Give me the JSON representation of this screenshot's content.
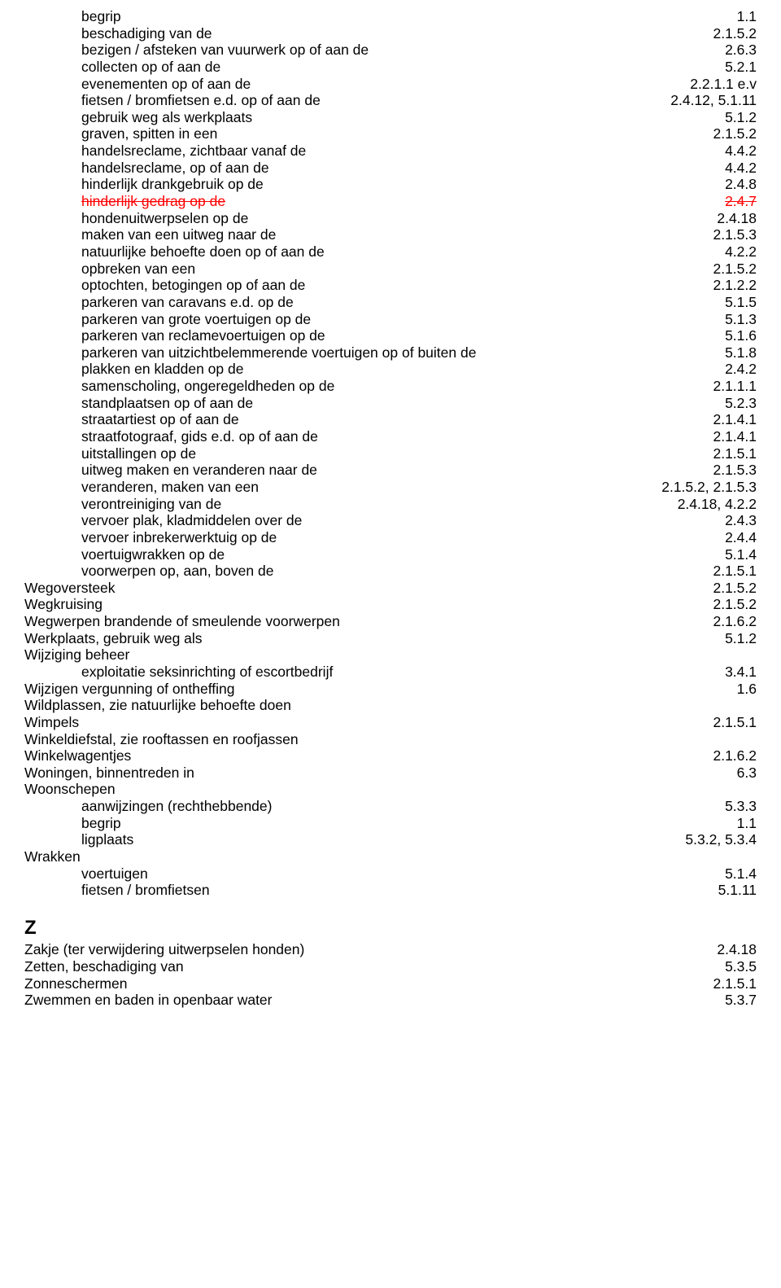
{
  "main_entries": [
    {
      "term": "begrip",
      "ref": "1.1",
      "indent": 1,
      "struck": false
    },
    {
      "term": "beschadiging van de",
      "ref": "2.1.5.2",
      "indent": 1,
      "struck": false
    },
    {
      "term": "bezigen / afsteken van vuurwerk op of aan de",
      "ref": "2.6.3",
      "indent": 1,
      "struck": false
    },
    {
      "term": "collecten op of aan de",
      "ref": "5.2.1",
      "indent": 1,
      "struck": false
    },
    {
      "term": "evenementen op of aan de",
      "ref": "2.2.1.1 e.v",
      "indent": 1,
      "struck": false
    },
    {
      "term": "fietsen / bromfietsen e.d. op of aan de",
      "ref": "2.4.12, 5.1.11",
      "indent": 1,
      "struck": false
    },
    {
      "term": "gebruik weg als werkplaats",
      "ref": "5.1.2",
      "indent": 1,
      "struck": false
    },
    {
      "term": "graven, spitten in een",
      "ref": "2.1.5.2",
      "indent": 1,
      "struck": false
    },
    {
      "term": "handelsreclame, zichtbaar vanaf de",
      "ref": "4.4.2",
      "indent": 1,
      "struck": false
    },
    {
      "term": "handelsreclame, op of aan de",
      "ref": "4.4.2",
      "indent": 1,
      "struck": false
    },
    {
      "term": "hinderlijk drankgebruik op de",
      "ref": "2.4.8",
      "indent": 1,
      "struck": false
    },
    {
      "term": "hinderlijk gedrag op de",
      "ref": "2.4.7",
      "indent": 1,
      "struck": true
    },
    {
      "term": "hondenuitwerpselen op de",
      "ref": "2.4.18",
      "indent": 1,
      "struck": false
    },
    {
      "term": "maken van een uitweg naar de",
      "ref": "2.1.5.3",
      "indent": 1,
      "struck": false
    },
    {
      "term": "natuurlijke behoefte doen op of aan de",
      "ref": "4.2.2",
      "indent": 1,
      "struck": false
    },
    {
      "term": "opbreken van een",
      "ref": "2.1.5.2",
      "indent": 1,
      "struck": false
    },
    {
      "term": "optochten, betogingen op of aan de",
      "ref": "2.1.2.2",
      "indent": 1,
      "struck": false
    },
    {
      "term": "parkeren van caravans e.d. op de",
      "ref": "5.1.5",
      "indent": 1,
      "struck": false
    },
    {
      "term": "parkeren van grote voertuigen op de",
      "ref": "5.1.3",
      "indent": 1,
      "struck": false
    },
    {
      "term": "parkeren van reclamevoertuigen op de",
      "ref": "5.1.6",
      "indent": 1,
      "struck": false
    },
    {
      "term": "parkeren van uitzichtbelemmerende voertuigen op of buiten de",
      "ref": "5.1.8",
      "indent": 1,
      "struck": false
    },
    {
      "term": "plakken en kladden op de",
      "ref": "2.4.2",
      "indent": 1,
      "struck": false
    },
    {
      "term": "samenscholing, ongeregeldheden op de",
      "ref": "2.1.1.1",
      "indent": 1,
      "struck": false
    },
    {
      "term": "standplaatsen op of aan de",
      "ref": "5.2.3",
      "indent": 1,
      "struck": false
    },
    {
      "term": "straatartiest op of aan de",
      "ref": "2.1.4.1",
      "indent": 1,
      "struck": false
    },
    {
      "term": "straatfotograaf, gids e.d. op of aan de",
      "ref": "2.1.4.1",
      "indent": 1,
      "struck": false
    },
    {
      "term": "uitstallingen op de",
      "ref": "2.1.5.1",
      "indent": 1,
      "struck": false
    },
    {
      "term": "uitweg maken en veranderen naar de",
      "ref": "2.1.5.3",
      "indent": 1,
      "struck": false
    },
    {
      "term": "veranderen, maken van een",
      "ref": "2.1.5.2, 2.1.5.3",
      "indent": 1,
      "struck": false
    },
    {
      "term": "verontreiniging van de",
      "ref": "2.4.18, 4.2.2",
      "indent": 1,
      "struck": false
    },
    {
      "term": "vervoer plak, kladmiddelen over de",
      "ref": "2.4.3",
      "indent": 1,
      "struck": false
    },
    {
      "term": "vervoer inbrekerwerktuig op de",
      "ref": "2.4.4",
      "indent": 1,
      "struck": false
    },
    {
      "term": "voertuigwrakken op de",
      "ref": "5.1.4",
      "indent": 1,
      "struck": false
    },
    {
      "term": "voorwerpen op, aan, boven de",
      "ref": "2.1.5.1",
      "indent": 1,
      "struck": false
    },
    {
      "term": "Wegoversteek",
      "ref": "2.1.5.2",
      "indent": 0,
      "struck": false
    },
    {
      "term": "Wegkruising",
      "ref": "2.1.5.2",
      "indent": 0,
      "struck": false
    },
    {
      "term": "Wegwerpen brandende of smeulende voorwerpen",
      "ref": "2.1.6.2",
      "indent": 0,
      "struck": false
    },
    {
      "term": "Werkplaats, gebruik weg als",
      "ref": "5.1.2",
      "indent": 0,
      "struck": false
    },
    {
      "term": "Wijziging beheer",
      "ref": "",
      "indent": 0,
      "struck": false
    },
    {
      "term": "exploitatie seksinrichting of escortbedrijf",
      "ref": "3.4.1",
      "indent": 1,
      "struck": false
    },
    {
      "term": "Wijzigen vergunning of ontheffing",
      "ref": "1.6",
      "indent": 0,
      "struck": false
    },
    {
      "term": "Wildplassen, zie natuurlijke behoefte doen",
      "ref": "",
      "indent": 0,
      "struck": false
    },
    {
      "term": "Wimpels",
      "ref": "2.1.5.1",
      "indent": 0,
      "struck": false
    },
    {
      "term": "Winkeldiefstal, zie rooftassen en roofjassen",
      "ref": "",
      "indent": 0,
      "struck": false
    },
    {
      "term": "Winkelwagentjes",
      "ref": "2.1.6.2",
      "indent": 0,
      "struck": false
    },
    {
      "term": "Woningen, binnentreden in",
      "ref": "6.3",
      "indent": 0,
      "struck": false
    },
    {
      "term": "Woonschepen",
      "ref": "",
      "indent": 0,
      "struck": false
    },
    {
      "term": "aanwijzingen (rechthebbende)",
      "ref": "5.3.3",
      "indent": 1,
      "struck": false
    },
    {
      "term": "begrip",
      "ref": "1.1",
      "indent": 1,
      "struck": false
    },
    {
      "term": "ligplaats",
      "ref": "5.3.2, 5.3.4",
      "indent": 1,
      "struck": false
    },
    {
      "term": "Wrakken",
      "ref": "",
      "indent": 0,
      "struck": false
    },
    {
      "term": "voertuigen",
      "ref": "5.1.4",
      "indent": 1,
      "struck": false
    },
    {
      "term": "fietsen / bromfietsen",
      "ref": "5.1.11",
      "indent": 1,
      "struck": false
    }
  ],
  "section_z": {
    "letter": "Z",
    "entries": [
      {
        "term": "Zakje (ter verwijdering uitwerpselen honden)",
        "ref": "2.4.18",
        "indent": 0,
        "struck": false
      },
      {
        "term": "Zetten, beschadiging van",
        "ref": "5.3.5",
        "indent": 0,
        "struck": false
      },
      {
        "term": "Zonneschermen",
        "ref": "2.1.5.1",
        "indent": 0,
        "struck": false
      },
      {
        "term": "Zwemmen en baden in openbaar water",
        "ref": "5.3.7",
        "indent": 0,
        "struck": false
      }
    ]
  }
}
